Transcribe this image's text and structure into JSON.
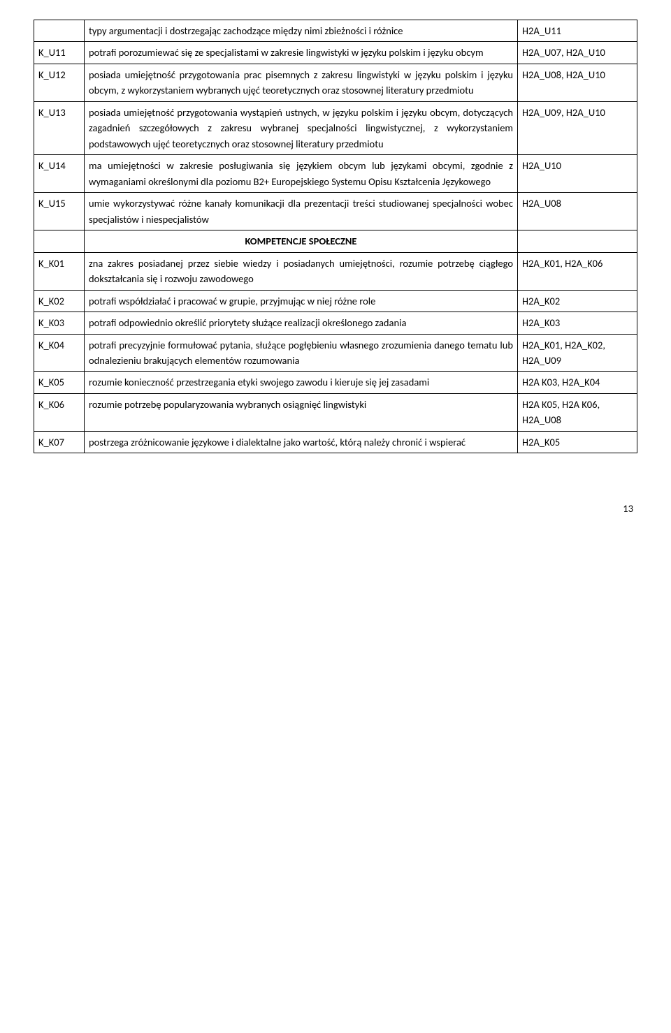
{
  "rows": [
    {
      "code": "",
      "desc": "typy argumentacji i dostrzegając zachodzące między nimi zbieżności i różnice",
      "ref": "H2A_U11"
    },
    {
      "code": "K_U11",
      "desc": "potrafi porozumiewać się ze specjalistami w zakresie lingwistyki w języku polskim i języku obcym",
      "ref": "H2A_U07, H2A_U10"
    },
    {
      "code": "K_U12",
      "desc": "posiada umiejętność przygotowania prac pisemnych z zakresu lingwistyki w języku polskim i języku obcym, z wykorzystaniem wybranych ujęć teoretycznych oraz stosownej literatury przedmiotu",
      "ref": "H2A_U08, H2A_U10"
    },
    {
      "code": "K_U13",
      "desc": "posiada umiejętność przygotowania wystąpień ustnych, w języku polskim i języku obcym, dotyczących zagadnień szczegółowych z zakresu wybranej specjalności lingwistycznej, z wykorzystaniem podstawowych ujęć teoretycznych oraz stosownej literatury przedmiotu",
      "ref": "H2A_U09, H2A_U10"
    },
    {
      "code": "K_U14",
      "desc": "ma umiejętności w zakresie posługiwania się językiem obcym lub językami obcymi, zgodnie z wymaganiami określonymi dla poziomu B2+ Europejskiego Systemu Opisu Kształcenia Językowego",
      "ref": "H2A_U10"
    },
    {
      "code": "K_U15",
      "desc": "umie wykorzystywać różne kanały komunikacji dla prezentacji treści studiowanej specjalności wobec specjalistów i niespecjalistów",
      "ref": "H2A_U08"
    }
  ],
  "section": "KOMPETENCJE SPOŁECZNE",
  "rows2": [
    {
      "code": "K_K01",
      "desc": "zna zakres posiadanej przez siebie wiedzy i posiadanych umiejętności, rozumie potrzebę ciągłego dokształcania się i rozwoju zawodowego",
      "ref": "H2A_K01, H2A_K06"
    },
    {
      "code": "K_K02",
      "desc": "potrafi współdziałać i pracować w grupie, przyjmując w niej różne role",
      "ref": "H2A_K02"
    },
    {
      "code": "K_K03",
      "desc": "potrafi odpowiednio określić priorytety służące realizacji określonego zadania",
      "ref": "H2A_K03"
    },
    {
      "code": "K_K04",
      "desc": "potrafi precyzyjnie formułować pytania, służące pogłębieniu własnego zrozumienia danego tematu lub odnalezieniu brakujących elementów rozumowania",
      "ref": "H2A_K01, H2A_K02, H2A_U09"
    },
    {
      "code": "K_K05",
      "desc": "rozumie konieczność przestrzegania etyki swojego zawodu i kieruje się jej zasadami",
      "ref": "H2A K03, H2A_K04"
    },
    {
      "code": "K_K06",
      "desc": "rozumie potrzebę popularyzowania wybranych osiągnięć lingwistyki",
      "ref": "H2A K05, H2A K06, H2A_U08"
    },
    {
      "code": "K_K07",
      "desc": "postrzega zróżnicowanie językowe i dialektalne jako wartość, którą należy chronić i wspierać",
      "ref": "H2A_K05"
    }
  ],
  "pageNumber": "13"
}
